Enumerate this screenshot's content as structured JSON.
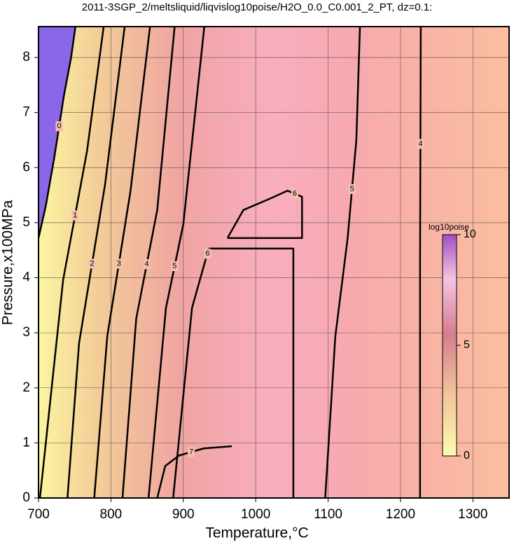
{
  "chart_data": {
    "type": "contour",
    "title": "2011-3SGP_2/meltsliquid/liqvislog10poise/H2O_0.0_C0.001_2_PT, dz=0.1:",
    "x_label": "Temperature,°C",
    "y_label": "Pressure,x100MPa",
    "xlim": [
      700,
      1350
    ],
    "ylim": [
      0,
      8.56
    ],
    "xticks": [
      700,
      800,
      900,
      1000,
      1100,
      1200,
      1300
    ],
    "yticks": [
      0,
      1,
      2,
      3,
      4,
      5,
      6,
      7,
      8
    ],
    "grid": true,
    "contours": [
      {
        "level": 0,
        "x": [
          700,
          710,
          722,
          735,
          745,
          751
        ],
        "y": [
          4.72,
          5.3,
          6.2,
          7.3,
          8.0,
          8.56
        ]
      },
      {
        "level": 1,
        "x": [
          702,
          734,
          767,
          790
        ],
        "y": [
          0,
          3.96,
          6.3,
          8.56
        ]
      },
      {
        "level": 2,
        "x": [
          740,
          756,
          792,
          819
        ],
        "y": [
          0,
          2.81,
          5.7,
          8.56
        ]
      },
      {
        "level": 3,
        "x": [
          777,
          795,
          827,
          854
        ],
        "y": [
          0,
          2.94,
          5.57,
          8.56
        ]
      },
      {
        "level": 4,
        "x": [
          816,
          835,
          864,
          888
        ],
        "y": [
          0,
          3.26,
          5.23,
          8.56
        ]
      },
      {
        "level": 5,
        "x": [
          852,
          876,
          900,
          929
        ],
        "y": [
          0,
          3.45,
          4.97,
          8.56
        ]
      },
      {
        "level": 6,
        "x": [
          886,
          912,
          931,
          936,
          1052,
          1052
        ],
        "y": [
          0,
          3.45,
          4.34,
          4.53,
          4.53,
          0
        ]
      },
      {
        "level": 6,
        "x": [
          961,
          983,
          1017,
          1044,
          1064,
          1064,
          961
        ],
        "y": [
          4.72,
          5.23,
          5.42,
          5.58,
          5.47,
          4.72,
          4.72
        ]
      },
      {
        "level": 5,
        "x": [
          1096,
          1110,
          1127,
          1139,
          1144
        ],
        "y": [
          0,
          2.94,
          4.72,
          6.5,
          8.56
        ]
      },
      {
        "level": 4,
        "x": [
          1227,
          1227,
          1228
        ],
        "y": [
          0,
          4.3,
          8.56
        ]
      },
      {
        "level": 7,
        "x": [
          864,
          875,
          894,
          928,
          967
        ],
        "y": [
          0,
          0.58,
          0.77,
          0.9,
          0.94
        ]
      }
    ],
    "colorbar": {
      "label": "log10poise",
      "lim": [
        0,
        10
      ],
      "ticks": [
        0,
        5,
        10
      ]
    }
  }
}
